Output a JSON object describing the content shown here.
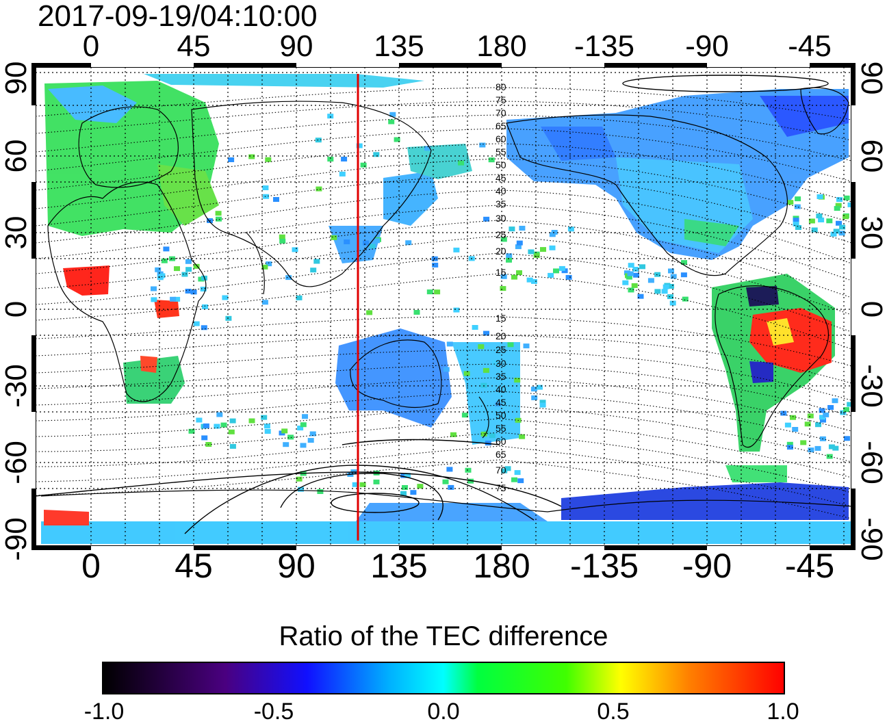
{
  "title": "2017-09-19/04:10:00",
  "map": {
    "lon_ticks": [
      "0",
      "45",
      "90",
      "135",
      "180",
      "-135",
      "-90",
      "-45"
    ],
    "lat_ticks_left": [
      "90",
      "60",
      "30",
      "0",
      "-30",
      "-60",
      "-90"
    ],
    "lat_ticks_right": [
      "90",
      "60",
      "30",
      "0",
      "-30",
      "-60",
      "-90"
    ],
    "lon_range": [
      -20,
      320
    ],
    "lat_range": [
      -90,
      90
    ],
    "grid": true,
    "meridian_marker": {
      "lon": 118,
      "color": "#e00000"
    },
    "magnetic_lat_labels_north": [
      "80",
      "75",
      "70",
      "65",
      "60",
      "55",
      "50",
      "45",
      "40",
      "35",
      "30",
      "25",
      "20",
      "15"
    ],
    "magnetic_lat_labels_south": [
      "15",
      "20",
      "25",
      "30",
      "35",
      "40",
      "45",
      "50",
      "55",
      "60",
      "65",
      "70",
      "75"
    ]
  },
  "colorbar": {
    "title": "Ratio of the TEC difference",
    "ticks": [
      "-1.0",
      "-0.5",
      "0.0",
      "0.5",
      "1.0"
    ],
    "range": [
      -1.0,
      1.0
    ],
    "colors": [
      "#000000",
      "#5a0070",
      "#0000ff",
      "#00ffff",
      "#00ff00",
      "#ffff00",
      "#ff0000"
    ]
  }
}
